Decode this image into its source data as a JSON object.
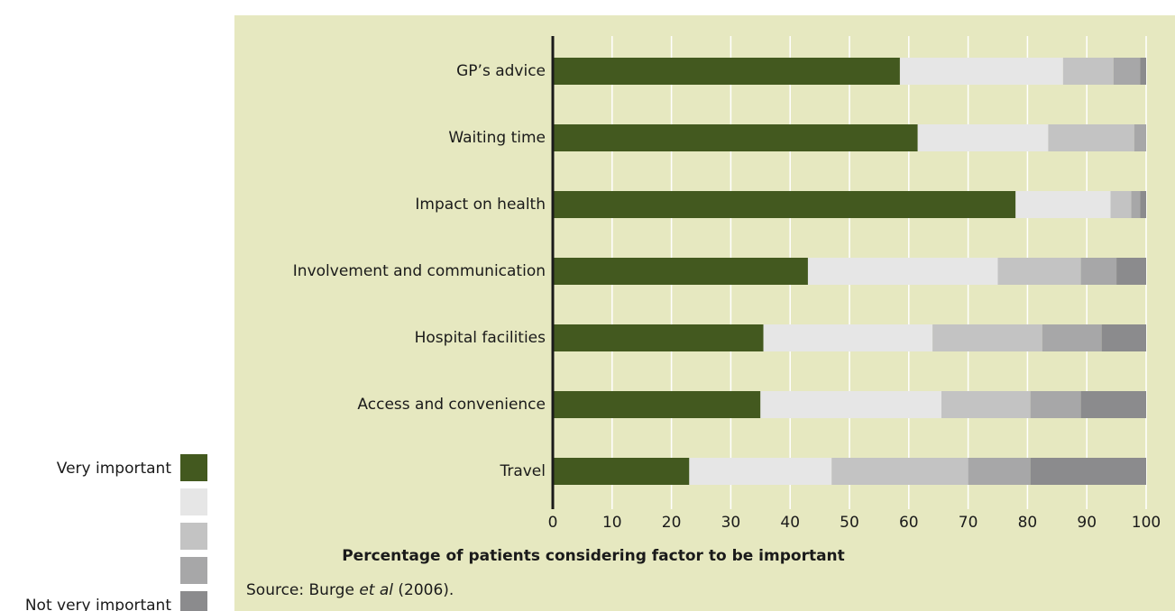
{
  "chart_data": {
    "type": "stacked_barh",
    "categories": [
      "GP’s advice",
      "Waiting time",
      "Impact on health",
      "Involvement and communication",
      "Hospital facilities",
      "Access and convenience",
      "Travel"
    ],
    "series": [
      {
        "name": "Very important",
        "color": "#43591f",
        "values": [
          58.5,
          61.5,
          78,
          43,
          35.5,
          35,
          23
        ]
      },
      {
        "name": null,
        "color": "#e6e6e6",
        "values": [
          27.5,
          22,
          16,
          32,
          28.5,
          30.5,
          24
        ]
      },
      {
        "name": null,
        "color": "#c3c3c3",
        "values": [
          8.5,
          14.5,
          3.5,
          14,
          18.5,
          15,
          23
        ]
      },
      {
        "name": null,
        "color": "#a7a7a8",
        "values": [
          4.5,
          2,
          1.5,
          6,
          10,
          8.5,
          10.5
        ]
      },
      {
        "name": "Not very important",
        "color": "#8b8b8d",
        "values": [
          1,
          0,
          1,
          5,
          7.5,
          11,
          19.5
        ]
      }
    ],
    "xlim": [
      0,
      100
    ],
    "xticks": [
      0,
      10,
      20,
      30,
      40,
      50,
      60,
      70,
      80,
      90,
      100
    ],
    "xlabel": "Percentage of patients considering factor to be important",
    "grid": true,
    "source": [
      "Source: Burge ",
      "et al",
      " (2006)."
    ]
  }
}
